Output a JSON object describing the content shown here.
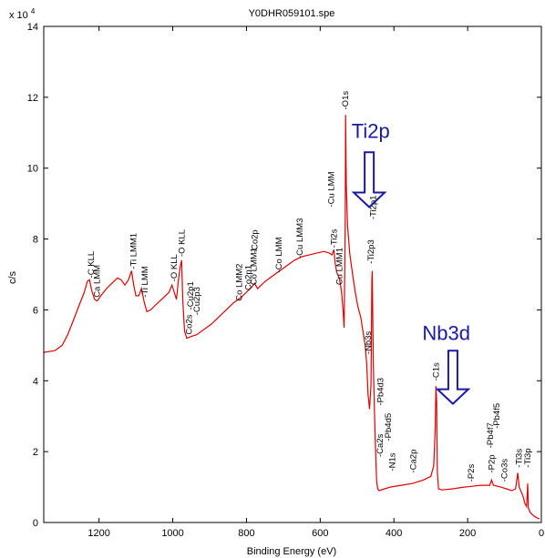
{
  "chart_data": {
    "type": "line",
    "title": "Y0DHR059101.spe",
    "xlabel": "Binding Energy (eV)",
    "ylabel": "c/s",
    "y_exponent_label": "x 10",
    "y_exponent_power": "4",
    "xlim": [
      1350,
      0
    ],
    "ylim": [
      0,
      14
    ],
    "x_ticks": [
      1200,
      1000,
      800,
      600,
      400,
      200,
      0
    ],
    "y_ticks": [
      0,
      2,
      4,
      6,
      8,
      10,
      12,
      14
    ],
    "line_color": "#e00000",
    "annotation_color": "#1a1aa0",
    "series": [
      {
        "points": [
          [
            1350,
            4.8
          ],
          [
            1320,
            4.85
          ],
          [
            1300,
            5.0
          ],
          [
            1285,
            5.3
          ],
          [
            1270,
            5.7
          ],
          [
            1255,
            6.1
          ],
          [
            1240,
            6.5
          ],
          [
            1232,
            6.8
          ],
          [
            1226,
            6.85
          ],
          [
            1220,
            6.55
          ],
          [
            1212,
            6.3
          ],
          [
            1205,
            6.25
          ],
          [
            1195,
            6.4
          ],
          [
            1180,
            6.6
          ],
          [
            1165,
            6.75
          ],
          [
            1150,
            6.9
          ],
          [
            1140,
            6.85
          ],
          [
            1130,
            6.7
          ],
          [
            1120,
            6.85
          ],
          [
            1112,
            7.1
          ],
          [
            1106,
            6.7
          ],
          [
            1100,
            6.4
          ],
          [
            1092,
            6.4
          ],
          [
            1085,
            6.6
          ],
          [
            1077,
            6.2
          ],
          [
            1070,
            5.95
          ],
          [
            1060,
            6.0
          ],
          [
            1050,
            6.1
          ],
          [
            1040,
            6.2
          ],
          [
            1030,
            6.3
          ],
          [
            1020,
            6.4
          ],
          [
            1010,
            6.5
          ],
          [
            1002,
            6.7
          ],
          [
            996,
            6.5
          ],
          [
            990,
            6.3
          ],
          [
            985,
            6.8
          ],
          [
            980,
            7.2
          ],
          [
            976,
            7.4
          ],
          [
            973,
            6.3
          ],
          [
            968,
            5.4
          ],
          [
            962,
            5.2
          ],
          [
            950,
            5.25
          ],
          [
            935,
            5.3
          ],
          [
            915,
            5.45
          ],
          [
            895,
            5.6
          ],
          [
            875,
            5.8
          ],
          [
            855,
            6.0
          ],
          [
            835,
            6.2
          ],
          [
            815,
            6.35
          ],
          [
            795,
            6.55
          ],
          [
            785,
            6.65
          ],
          [
            778,
            6.75
          ],
          [
            770,
            6.6
          ],
          [
            750,
            6.8
          ],
          [
            730,
            6.95
          ],
          [
            710,
            7.1
          ],
          [
            690,
            7.25
          ],
          [
            670,
            7.4
          ],
          [
            650,
            7.5
          ],
          [
            630,
            7.55
          ],
          [
            610,
            7.6
          ],
          [
            590,
            7.65
          ],
          [
            575,
            7.6
          ],
          [
            568,
            7.55
          ],
          [
            563,
            7.7
          ],
          [
            559,
            7.3
          ],
          [
            555,
            7.05
          ],
          [
            548,
            6.9
          ],
          [
            542,
            6.5
          ],
          [
            538,
            6.0
          ],
          [
            535,
            5.5
          ],
          [
            532,
            8.5
          ],
          [
            531,
            11.5
          ],
          [
            529,
            9.5
          ],
          [
            526,
            8.4
          ],
          [
            520,
            7.6
          ],
          [
            512,
            7.0
          ],
          [
            505,
            6.5
          ],
          [
            498,
            6.1
          ],
          [
            490,
            5.8
          ],
          [
            484,
            5.4
          ],
          [
            478,
            5.0
          ],
          [
            474,
            4.5
          ],
          [
            470,
            3.6
          ],
          [
            466,
            3.2
          ],
          [
            462,
            3.9
          ],
          [
            460,
            6.8
          ],
          [
            459,
            7.1
          ],
          [
            458,
            6.3
          ],
          [
            456,
            4.5
          ],
          [
            453,
            3.2
          ],
          [
            450,
            2.1
          ],
          [
            447,
            1.2
          ],
          [
            444,
            0.95
          ],
          [
            440,
            0.9
          ],
          [
            425,
            0.95
          ],
          [
            410,
            1.0
          ],
          [
            380,
            1.05
          ],
          [
            350,
            1.1
          ],
          [
            320,
            1.2
          ],
          [
            300,
            1.3
          ],
          [
            292,
            1.6
          ],
          [
            288,
            2.6
          ],
          [
            286,
            3.85
          ],
          [
            284,
            3.4
          ],
          [
            282,
            1.4
          ],
          [
            279,
            0.95
          ],
          [
            270,
            0.92
          ],
          [
            240,
            0.95
          ],
          [
            210,
            1.0
          ],
          [
            190,
            1.02
          ],
          [
            165,
            1.05
          ],
          [
            140,
            1.05
          ],
          [
            135,
            1.2
          ],
          [
            130,
            1.05
          ],
          [
            110,
            1.0
          ],
          [
            95,
            0.95
          ],
          [
            80,
            0.9
          ],
          [
            70,
            0.95
          ],
          [
            64,
            1.4
          ],
          [
            60,
            1.0
          ],
          [
            50,
            0.75
          ],
          [
            45,
            0.55
          ],
          [
            40,
            0.45
          ],
          [
            37,
            1.1
          ],
          [
            35,
            0.4
          ],
          [
            30,
            0.28
          ],
          [
            20,
            0.18
          ],
          [
            10,
            0.12
          ],
          [
            5,
            0.1
          ]
        ]
      }
    ],
    "peak_labels": [
      {
        "text": "-C KLL",
        "x": 1222,
        "y": 6.9
      },
      {
        "text": "Ca LMM",
        "x": 1205,
        "y": 6.35
      },
      {
        "text": "-Ti LMM1",
        "x": 1106,
        "y": 7.15
      },
      {
        "text": "-Ti LMM",
        "x": 1075,
        "y": 6.35
      },
      {
        "text": "-O KLL",
        "x": 997,
        "y": 6.8
      },
      {
        "text": "-O KLL",
        "x": 975,
        "y": 7.5
      },
      {
        "text": "Co2s",
        "x": 955,
        "y": 5.3
      },
      {
        "text": "-Cu2p1",
        "x": 952,
        "y": 6.0
      },
      {
        "text": "-Cu2p3",
        "x": 934,
        "y": 5.85
      },
      {
        "text": "Co LMM2",
        "x": 820,
        "y": 6.25
      },
      {
        "text": "Co2p1",
        "x": 795,
        "y": 6.55
      },
      {
        "text": "Co LMM1",
        "x": 780,
        "y": 6.7
      },
      {
        "text": "-Co2p",
        "x": 778,
        "y": 7.6
      },
      {
        "text": "-Co LMM",
        "x": 712,
        "y": 7.05
      },
      {
        "text": "-Cu LMM3",
        "x": 655,
        "y": 7.45
      },
      {
        "text": "-Cu LMM",
        "x": 570,
        "y": 8.9
      },
      {
        "text": "-Ti2s",
        "x": 562,
        "y": 7.75
      },
      {
        "text": "Cu LMM1",
        "x": 548,
        "y": 6.7
      },
      {
        "text": "-O1s",
        "x": 531,
        "y": 11.65
      },
      {
        "text": "-Ti2p3",
        "x": 462,
        "y": 7.3
      },
      {
        "text": "-Ti2p1",
        "x": 456,
        "y": 8.55
      },
      {
        "text": "-Nb3s",
        "x": 470,
        "y": 4.75
      },
      {
        "text": "-Pb4d3",
        "x": 437,
        "y": 3.3
      },
      {
        "text": "-Ca2s",
        "x": 437,
        "y": 1.85
      },
      {
        "text": "-Pb4d5",
        "x": 415,
        "y": 2.3
      },
      {
        "text": "-N1s",
        "x": 404,
        "y": 1.45
      },
      {
        "text": "-Ca2p",
        "x": 347,
        "y": 1.4
      },
      {
        "text": "-C1s",
        "x": 285,
        "y": 4.0
      },
      {
        "text": "-P2s",
        "x": 190,
        "y": 1.15
      },
      {
        "text": "-P2p",
        "x": 135,
        "y": 1.4
      },
      {
        "text": "-Pb4f7",
        "x": 139,
        "y": 2.1
      },
      {
        "text": "-Pb4f5",
        "x": 121,
        "y": 2.65
      },
      {
        "text": "-Co3s",
        "x": 100,
        "y": 1.15
      },
      {
        "text": "-Ti3s",
        "x": 60,
        "y": 1.55
      },
      {
        "text": "-Ti3p",
        "x": 37,
        "y": 1.55
      }
    ],
    "callouts": [
      {
        "text": "Ti2p",
        "x": 463,
        "y": 10.85,
        "arrow_x": 467,
        "arrow_top": 10.45,
        "arrow_bottom": 8.9
      },
      {
        "text": "Nb3d",
        "x": 258,
        "y": 5.15,
        "arrow_x": 240,
        "arrow_top": 4.85,
        "arrow_bottom": 3.35
      }
    ]
  }
}
